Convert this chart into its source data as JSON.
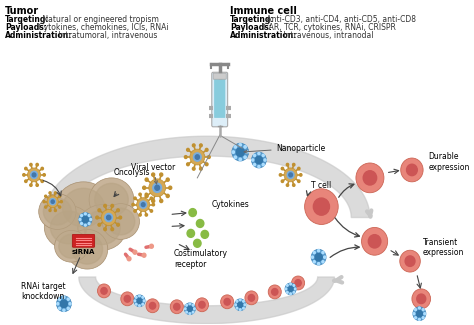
{
  "background_color": "#ffffff",
  "tumor_header": "Tumor",
  "tumor_targeting_bold": "Targeting:",
  "tumor_targeting_rest": " Natural or engineered tropism",
  "tumor_payloads_bold": "Payloads:",
  "tumor_payloads_rest": " Cytokines, chemokines, ICIs, RNAi",
  "tumor_admin_bold": "Administration:",
  "tumor_admin_rest": " Intratumoral, intravenous",
  "immune_header": "Immune cell",
  "immune_targeting_bold": "Targeting:",
  "immune_targeting_rest": " Anti-CD3, anti-CD4, anti-CD5, anti-CD8",
  "immune_payloads_bold": "Payloads:",
  "immune_payloads_rest": " CAR, TCR, cytokines, RNAi, CRISPR",
  "immune_admin_bold": "Administration:",
  "immune_admin_rest": " Intravenous, intranodal",
  "label_viral_vector": "Viral vector",
  "label_nanoparticle": "Nanoparticle",
  "label_oncolysis": "Oncolysis",
  "label_cytokines": "Cytokines",
  "label_costimulatory": "Costimulatory\nreceptor",
  "label_tcell": "T cell",
  "label_sirna": "siRNA",
  "label_rnai": "RNAi target\nknockdown",
  "label_durable": "Durable\nexpression",
  "label_transient": "Transient\nexpression",
  "tumor_color": "#c8b49a",
  "tumor_inner_color": "#d8c8b3",
  "virus_body_color": "#d4a855",
  "virus_spike_color": "#c09030",
  "nanoparticle_color": "#5599cc",
  "nanoparticle_inner_color": "#3377aa",
  "tcell_body_color": "#e8857a",
  "tcell_nucleus_color": "#cc5555",
  "cytokine_color": "#88bb44",
  "arch_color": "#c8c8c8",
  "sirna_color": "#cc2222",
  "receptor_color": "#e07070",
  "arrow_color": "#444444",
  "text_bold_color": "#000000",
  "text_normal_color": "#333333",
  "syringe_barrel_color": "#ddeef8",
  "syringe_liquid_color": "#88ccdd",
  "syringe_metal_color": "#999999"
}
